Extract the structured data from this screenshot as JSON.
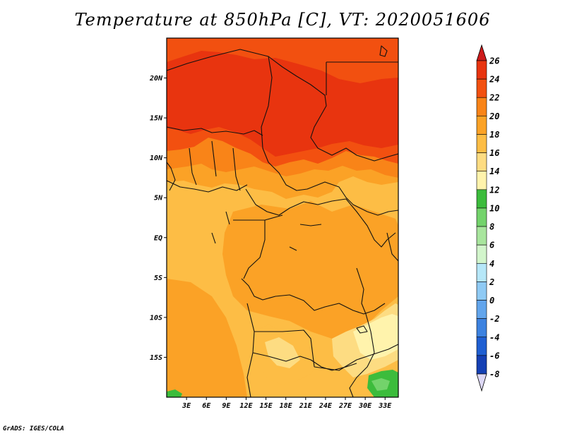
{
  "title": "Temperature at 850hPa [C], VT: 2020051606",
  "credit": "GrADS: IGES/COLA",
  "map": {
    "lon_range": [
      0,
      35
    ],
    "lat_range": [
      -20,
      25
    ],
    "lat_ticks": [
      {
        "value": 20,
        "label": "20N"
      },
      {
        "value": 15,
        "label": "15N"
      },
      {
        "value": 10,
        "label": "10N"
      },
      {
        "value": 5,
        "label": "5N"
      },
      {
        "value": 0,
        "label": "EQ"
      },
      {
        "value": -5,
        "label": "5S"
      },
      {
        "value": -10,
        "label": "10S"
      },
      {
        "value": -15,
        "label": "15S"
      }
    ],
    "lon_ticks": [
      {
        "value": 3,
        "label": "3E"
      },
      {
        "value": 6,
        "label": "6E"
      },
      {
        "value": 9,
        "label": "9E"
      },
      {
        "value": 12,
        "label": "12E"
      },
      {
        "value": 15,
        "label": "15E"
      },
      {
        "value": 18,
        "label": "18E"
      },
      {
        "value": 21,
        "label": "21E"
      },
      {
        "value": 24,
        "label": "24E"
      },
      {
        "value": 27,
        "label": "27E"
      },
      {
        "value": 30,
        "label": "30E"
      },
      {
        "value": 33,
        "label": "33E"
      }
    ]
  },
  "colorbar": {
    "levels": [
      {
        "label": "26",
        "color": "#e8340f"
      },
      {
        "label": "24",
        "color": "#f25010"
      },
      {
        "label": "22",
        "color": "#f98418"
      },
      {
        "label": "20",
        "color": "#fba226"
      },
      {
        "label": "18",
        "color": "#fdbd45"
      },
      {
        "label": "16",
        "color": "#fddc82"
      },
      {
        "label": "14",
        "color": "#fff3ac"
      },
      {
        "label": "12",
        "color": "#3cbc3c"
      },
      {
        "label": "10",
        "color": "#73d36b"
      },
      {
        "label": "8",
        "color": "#a8e59d"
      },
      {
        "label": "6",
        "color": "#d2f5cb"
      },
      {
        "label": "4",
        "color": "#b6e7f8"
      },
      {
        "label": "2",
        "color": "#8fcaf4"
      },
      {
        "label": "0",
        "color": "#62a5ec"
      },
      {
        "label": "-2",
        "color": "#3c82e0"
      },
      {
        "label": "-4",
        "color": "#1f5fd2"
      },
      {
        "label": "-6",
        "color": "#1540b4"
      },
      {
        "label": "-8",
        "color": "#0d2a8a"
      }
    ],
    "top_color": "#cd1b1b",
    "bottom_color": "#ddd8f5"
  },
  "fields": {
    "background": "#fdbd45",
    "colors": {
      "c26": "#e8340f",
      "c24": "#f25010",
      "c22": "#f98418",
      "c20": "#fba226",
      "c18": "#fdbd45",
      "c16": "#fddc82",
      "c14": "#fff3ac",
      "c12": "#3cbc3c",
      "c10": "#73d36b"
    }
  }
}
